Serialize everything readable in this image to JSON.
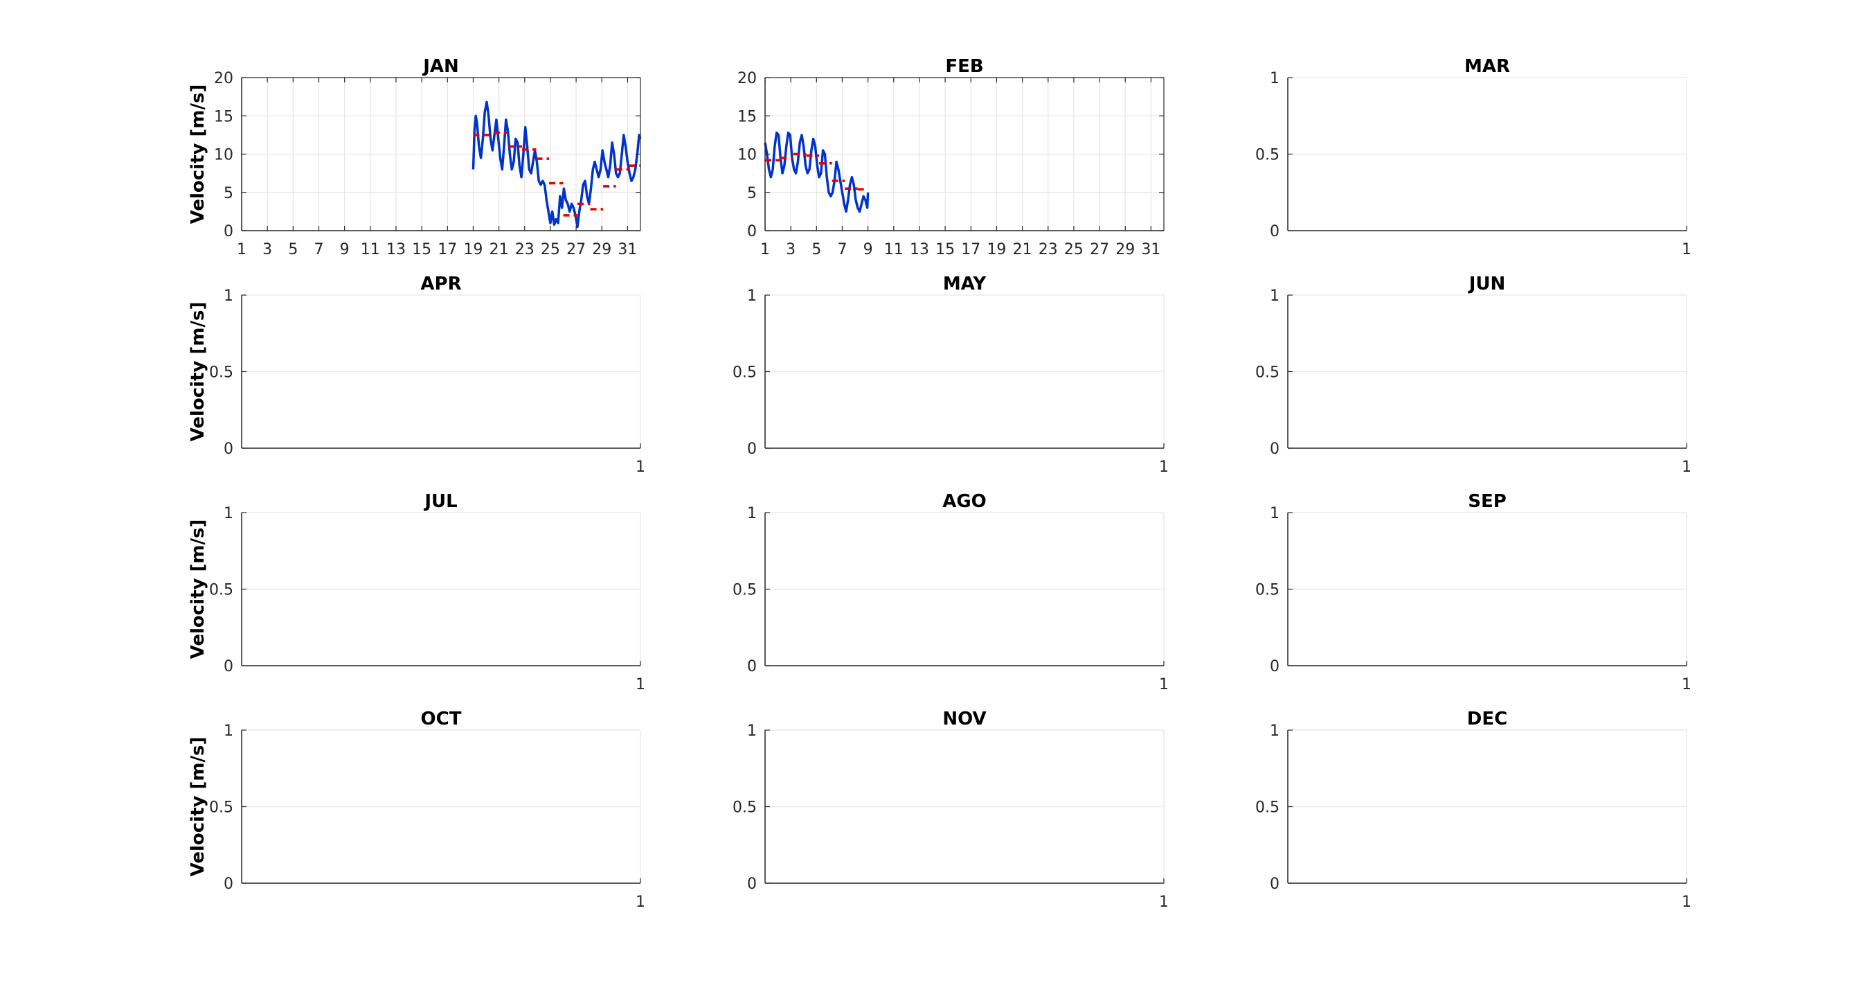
{
  "chart_data": [
    {
      "type": "line",
      "title": "JAN",
      "ylabel": "Velocity [m/s]",
      "xlim": [
        1,
        32
      ],
      "ylim": [
        0,
        20
      ],
      "xticks": [
        1,
        3,
        5,
        7,
        9,
        11,
        13,
        15,
        17,
        19,
        21,
        23,
        25,
        27,
        29,
        31
      ],
      "yticks": [
        0,
        5,
        10,
        15,
        20
      ],
      "grid": true,
      "series": [
        {
          "color": "#0033cc",
          "x": [
            19.0,
            19.1,
            19.2,
            19.3,
            19.45,
            19.6,
            19.75,
            19.9,
            20.05,
            20.2,
            20.35,
            20.5,
            20.65,
            20.8,
            20.95,
            21.1,
            21.25,
            21.4,
            21.55,
            21.7,
            21.85,
            22.0,
            22.15,
            22.3,
            22.45,
            22.6,
            22.75,
            22.9,
            23.05,
            23.2,
            23.35,
            23.5,
            23.65,
            23.8,
            23.95,
            24.1,
            24.25,
            24.4,
            24.55,
            24.7,
            24.85,
            25.0,
            25.15,
            25.3,
            25.45,
            25.6,
            25.75,
            25.9,
            26.05,
            26.2,
            26.35,
            26.5,
            26.65,
            26.8,
            26.95,
            27.1,
            27.25,
            27.4,
            27.55,
            27.7,
            27.85,
            28.0,
            28.15,
            28.3,
            28.45,
            28.6,
            28.75,
            28.9,
            29.05,
            29.2,
            29.35,
            29.5,
            29.65,
            29.8,
            29.95,
            30.1,
            30.25,
            30.4,
            30.55,
            30.7,
            30.85,
            31.0,
            31.15,
            31.3,
            31.45,
            31.6,
            31.75,
            31.9,
            32.0
          ],
          "y": [
            8,
            13,
            15,
            14,
            11,
            9.5,
            12,
            15.5,
            16.8,
            15,
            12,
            10.5,
            12.5,
            14.5,
            12,
            9.5,
            8,
            11,
            14.5,
            13,
            10,
            8,
            9,
            12,
            11.5,
            8.5,
            7,
            10,
            13.5,
            11,
            8,
            7.5,
            9,
            10.5,
            9,
            6.5,
            6,
            6.5,
            6,
            4,
            2.5,
            1,
            2.5,
            0.8,
            1.5,
            1,
            4.5,
            3,
            5.5,
            4,
            3.5,
            2.5,
            3.5,
            3,
            2,
            0.5,
            2.5,
            4,
            6,
            6.5,
            4.5,
            3.5,
            5.5,
            8,
            9,
            8,
            7,
            8,
            10.5,
            9,
            8,
            7,
            8.5,
            11.5,
            10,
            7.5,
            7,
            7.5,
            10,
            12.5,
            11,
            9,
            7.5,
            6.5,
            7,
            8,
            10,
            12.5,
            12
          ]
        },
        {
          "color": "#e60000",
          "segments": [
            [
              19,
              20.6,
              12.5
            ],
            [
              20.6,
              21.7,
              12.8
            ],
            [
              21.7,
              22.8,
              11
            ],
            [
              22.8,
              23.9,
              10.6
            ],
            [
              23.9,
              24.9,
              9.4
            ],
            [
              24.9,
              26.0,
              6.2
            ],
            [
              26.0,
              27.1,
              2
            ],
            [
              27.1,
              28.1,
              3.5
            ],
            [
              28.1,
              29.1,
              2.8
            ],
            [
              29.1,
              30.1,
              5.8
            ],
            [
              30.1,
              31.1,
              8
            ],
            [
              31.1,
              32.0,
              8.5
            ]
          ]
        }
      ]
    },
    {
      "type": "line",
      "title": "FEB",
      "ylabel": "",
      "xlim": [
        1,
        32
      ],
      "ylim": [
        0,
        20
      ],
      "xticks": [
        1,
        3,
        5,
        7,
        9,
        11,
        13,
        15,
        17,
        19,
        21,
        23,
        25,
        27,
        29,
        31
      ],
      "yticks": [
        0,
        5,
        10,
        15,
        20
      ],
      "grid": true,
      "series": [
        {
          "color": "#0033cc",
          "x": [
            1.0,
            1.15,
            1.3,
            1.45,
            1.6,
            1.75,
            1.9,
            2.05,
            2.2,
            2.35,
            2.5,
            2.65,
            2.8,
            2.95,
            3.1,
            3.25,
            3.4,
            3.55,
            3.7,
            3.85,
            4.0,
            4.15,
            4.3,
            4.45,
            4.6,
            4.75,
            4.9,
            5.05,
            5.2,
            5.35,
            5.5,
            5.65,
            5.8,
            5.95,
            6.1,
            6.25,
            6.4,
            6.55,
            6.7,
            6.85,
            7.0,
            7.15,
            7.3,
            7.45,
            7.6,
            7.75,
            7.9,
            8.05,
            8.2,
            8.35,
            8.5,
            8.65,
            8.8,
            8.95,
            9.0
          ],
          "y": [
            11.5,
            10,
            8,
            7,
            8,
            11,
            12.8,
            12.5,
            9.5,
            7.5,
            8.5,
            11,
            12.8,
            12.5,
            9.5,
            8,
            7.5,
            9,
            11.5,
            12.5,
            11,
            8.5,
            7.5,
            8,
            10.5,
            12,
            11,
            8.5,
            7,
            7.5,
            10.5,
            10,
            7,
            5,
            4.5,
            5,
            6.5,
            9,
            8,
            6.5,
            5,
            3.5,
            2.5,
            4,
            6,
            7,
            6,
            4,
            3,
            2.5,
            3.5,
            4.5,
            4,
            3,
            5
          ]
        },
        {
          "color": "#e60000",
          "segments": [
            [
              1,
              2.2,
              9.2
            ],
            [
              2.2,
              3.2,
              9.5
            ],
            [
              3.2,
              4.2,
              10
            ],
            [
              4.2,
              5.2,
              9.8
            ],
            [
              5.2,
              6.2,
              8.8
            ],
            [
              6.2,
              7.2,
              6.5
            ],
            [
              7.2,
              8.2,
              5.5
            ],
            [
              8.2,
              8.9,
              5.4
            ]
          ]
        }
      ]
    },
    {
      "type": "line",
      "title": "MAR",
      "ylabel": "",
      "xlim": [
        0,
        1
      ],
      "ylim": [
        0,
        1
      ],
      "xticks": [
        1
      ],
      "yticks": [
        0,
        0.5,
        1
      ],
      "grid": true,
      "series": []
    },
    {
      "type": "line",
      "title": "APR",
      "ylabel": "Velocity [m/s]",
      "xlim": [
        0,
        1
      ],
      "ylim": [
        0,
        1
      ],
      "xticks": [
        1
      ],
      "yticks": [
        0,
        0.5,
        1
      ],
      "grid": true,
      "series": []
    },
    {
      "type": "line",
      "title": "MAY",
      "ylabel": "",
      "xlim": [
        0,
        1
      ],
      "ylim": [
        0,
        1
      ],
      "xticks": [
        1
      ],
      "yticks": [
        0,
        0.5,
        1
      ],
      "grid": true,
      "series": []
    },
    {
      "type": "line",
      "title": "JUN",
      "ylabel": "",
      "xlim": [
        0,
        1
      ],
      "ylim": [
        0,
        1
      ],
      "xticks": [
        1
      ],
      "yticks": [
        0,
        0.5,
        1
      ],
      "grid": true,
      "series": []
    },
    {
      "type": "line",
      "title": "JUL",
      "ylabel": "Velocity [m/s]",
      "xlim": [
        0,
        1
      ],
      "ylim": [
        0,
        1
      ],
      "xticks": [
        1
      ],
      "yticks": [
        0,
        0.5,
        1
      ],
      "grid": true,
      "series": []
    },
    {
      "type": "line",
      "title": "AGO",
      "ylabel": "",
      "xlim": [
        0,
        1
      ],
      "ylim": [
        0,
        1
      ],
      "xticks": [
        1
      ],
      "yticks": [
        0,
        0.5,
        1
      ],
      "grid": true,
      "series": []
    },
    {
      "type": "line",
      "title": "SEP",
      "ylabel": "",
      "xlim": [
        0,
        1
      ],
      "ylim": [
        0,
        1
      ],
      "xticks": [
        1
      ],
      "yticks": [
        0,
        0.5,
        1
      ],
      "grid": true,
      "series": []
    },
    {
      "type": "line",
      "title": "OCT",
      "ylabel": "Velocity [m/s]",
      "xlim": [
        0,
        1
      ],
      "ylim": [
        0,
        1
      ],
      "xticks": [
        1
      ],
      "yticks": [
        0,
        0.5,
        1
      ],
      "grid": true,
      "series": []
    },
    {
      "type": "line",
      "title": "NOV",
      "ylabel": "",
      "xlim": [
        0,
        1
      ],
      "ylim": [
        0,
        1
      ],
      "xticks": [
        1
      ],
      "yticks": [
        0,
        0.5,
        1
      ],
      "grid": true,
      "series": []
    },
    {
      "type": "line",
      "title": "DEC",
      "ylabel": "",
      "xlim": [
        0,
        1
      ],
      "ylim": [
        0,
        1
      ],
      "xticks": [
        1
      ],
      "yticks": [
        0,
        0.5,
        1
      ],
      "grid": true,
      "series": []
    }
  ]
}
